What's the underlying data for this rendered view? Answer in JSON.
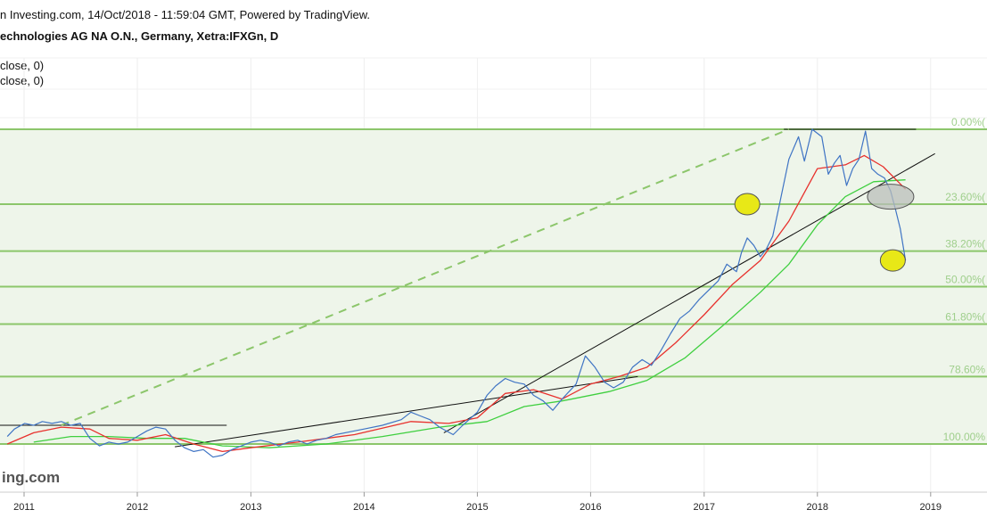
{
  "header": {
    "source_line": "n Investing.com, 14/Oct/2018 - 11:59:04 GMT, Powered by TradingView.",
    "symbol_line": "echnologies AG NA O.N., Germany, Xetra:IFXGn, D",
    "indicator_1": "close, 0)",
    "indicator_2": "close, 0)"
  },
  "watermark": "ing.com",
  "colors": {
    "price": "#3f74c4",
    "ma_fast": "#e8312d",
    "ma_slow": "#3fcf3f",
    "fib_line": "#8cc66b",
    "fib_fill": "#eef5ea",
    "fib_label": "#9fcf8c",
    "trendline": "#111111",
    "highlight_yellow": "#e8e817",
    "highlight_gray": "#b9bdb9"
  },
  "chart_data": {
    "type": "line",
    "x_axis_ticks": [
      "2011",
      "2012",
      "2013",
      "2014",
      "2015",
      "2016",
      "2017",
      "2018",
      "2019"
    ],
    "series": [
      {
        "values": [
          [
            "2010-11-08",
            7.6
          ],
          [
            "2010-12-01",
            8.0
          ],
          [
            "2011-01-03",
            8.3
          ],
          [
            "2011-02-01",
            8.2
          ],
          [
            "2011-03-01",
            8.4
          ],
          [
            "2011-04-01",
            8.3
          ],
          [
            "2011-05-01",
            8.4
          ],
          [
            "2011-06-01",
            8.2
          ],
          [
            "2011-07-01",
            8.3
          ],
          [
            "2011-08-01",
            7.5
          ],
          [
            "2011-09-01",
            7.1
          ],
          [
            "2011-10-01",
            7.3
          ],
          [
            "2011-11-01",
            7.2
          ],
          [
            "2011-12-01",
            7.3
          ],
          [
            "2012-01-01",
            7.6
          ],
          [
            "2012-02-01",
            7.9
          ],
          [
            "2012-03-01",
            8.1
          ],
          [
            "2012-04-01",
            8.0
          ],
          [
            "2012-05-01",
            7.4
          ],
          [
            "2012-06-01",
            7.0
          ],
          [
            "2012-07-01",
            6.8
          ],
          [
            "2012-08-01",
            6.9
          ],
          [
            "2012-09-01",
            6.5
          ],
          [
            "2012-10-01",
            6.6
          ],
          [
            "2012-11-01",
            6.9
          ],
          [
            "2013-01-01",
            7.3
          ],
          [
            "2013-02-01",
            7.4
          ],
          [
            "2013-03-01",
            7.3
          ],
          [
            "2013-04-01",
            7.1
          ],
          [
            "2013-05-01",
            7.3
          ],
          [
            "2013-06-01",
            7.4
          ],
          [
            "2013-07-01",
            7.2
          ],
          [
            "2013-08-01",
            7.4
          ],
          [
            "2013-09-01",
            7.5
          ],
          [
            "2013-10-01",
            7.7
          ],
          [
            "2013-12-01",
            7.9
          ],
          [
            "2014-01-01",
            8.0
          ],
          [
            "2014-03-01",
            8.2
          ],
          [
            "2014-05-01",
            8.5
          ],
          [
            "2014-06-01",
            8.9
          ],
          [
            "2014-07-01",
            8.7
          ],
          [
            "2014-08-01",
            8.5
          ],
          [
            "2014-09-01",
            8.1
          ],
          [
            "2014-10-15",
            7.7
          ],
          [
            "2014-11-15",
            8.2
          ],
          [
            "2015-01-01",
            8.9
          ],
          [
            "2015-02-01",
            9.8
          ],
          [
            "2015-03-01",
            10.3
          ],
          [
            "2015-04-01",
            10.7
          ],
          [
            "2015-05-01",
            10.5
          ],
          [
            "2015-06-01",
            10.4
          ],
          [
            "2015-07-01",
            9.8
          ],
          [
            "2015-08-01",
            9.5
          ],
          [
            "2015-09-01",
            9.0
          ],
          [
            "2015-10-01",
            9.6
          ],
          [
            "2015-11-15",
            10.4
          ],
          [
            "2015-12-15",
            11.9
          ],
          [
            "2016-01-15",
            11.3
          ],
          [
            "2016-02-15",
            10.5
          ],
          [
            "2016-03-15",
            10.2
          ],
          [
            "2016-04-15",
            10.5
          ],
          [
            "2016-05-15",
            11.3
          ],
          [
            "2016-06-15",
            11.7
          ],
          [
            "2016-07-15",
            11.4
          ],
          [
            "2016-08-15",
            12.2
          ],
          [
            "2016-09-15",
            13.1
          ],
          [
            "2016-10-15",
            13.9
          ],
          [
            "2016-11-15",
            14.3
          ],
          [
            "2016-12-15",
            14.9
          ],
          [
            "2017-01-15",
            15.4
          ],
          [
            "2017-02-15",
            15.9
          ],
          [
            "2017-03-15",
            16.8
          ],
          [
            "2017-04-15",
            16.4
          ],
          [
            "2017-05-01",
            17.4
          ],
          [
            "2017-05-20",
            18.2
          ],
          [
            "2017-06-10",
            17.8
          ],
          [
            "2017-07-01",
            17.2
          ],
          [
            "2017-07-20",
            17.6
          ],
          [
            "2017-08-10",
            18.3
          ],
          [
            "2017-09-01",
            20.0
          ],
          [
            "2017-10-01",
            22.4
          ],
          [
            "2017-11-01",
            23.6
          ],
          [
            "2017-11-20",
            22.3
          ],
          [
            "2017-12-15",
            24.0
          ],
          [
            "2018-01-15",
            23.6
          ],
          [
            "2018-02-05",
            21.6
          ],
          [
            "2018-02-25",
            22.2
          ],
          [
            "2018-03-15",
            22.6
          ],
          [
            "2018-04-05",
            21.0
          ],
          [
            "2018-04-25",
            21.9
          ],
          [
            "2018-05-15",
            22.4
          ],
          [
            "2018-06-05",
            23.9
          ],
          [
            "2018-06-25",
            21.9
          ],
          [
            "2018-07-15",
            21.6
          ],
          [
            "2018-08-05",
            21.4
          ],
          [
            "2018-08-25",
            20.7
          ],
          [
            "2018-09-10",
            19.7
          ],
          [
            "2018-09-25",
            18.7
          ],
          [
            "2018-10-12",
            17.0
          ]
        ]
      },
      {
        "values": [
          [
            "2010-11-08",
            7.2
          ],
          [
            "2011-02-01",
            7.8
          ],
          [
            "2011-05-01",
            8.1
          ],
          [
            "2011-08-01",
            8.0
          ],
          [
            "2011-10-01",
            7.5
          ],
          [
            "2012-01-01",
            7.4
          ],
          [
            "2012-04-01",
            7.7
          ],
          [
            "2012-07-01",
            7.2
          ],
          [
            "2012-10-01",
            6.8
          ],
          [
            "2013-01-01",
            7.0
          ],
          [
            "2013-06-01",
            7.3
          ],
          [
            "2013-12-01",
            7.7
          ],
          [
            "2014-06-01",
            8.4
          ],
          [
            "2014-10-01",
            8.3
          ],
          [
            "2015-01-01",
            8.6
          ],
          [
            "2015-04-01",
            9.9
          ],
          [
            "2015-07-01",
            10.1
          ],
          [
            "2015-10-01",
            9.6
          ],
          [
            "2016-01-01",
            10.4
          ],
          [
            "2016-04-01",
            10.8
          ],
          [
            "2016-07-01",
            11.3
          ],
          [
            "2016-10-01",
            12.6
          ],
          [
            "2017-01-01",
            14.1
          ],
          [
            "2017-04-01",
            15.7
          ],
          [
            "2017-07-01",
            17.0
          ],
          [
            "2017-10-01",
            19.1
          ],
          [
            "2018-01-01",
            21.9
          ],
          [
            "2018-04-01",
            22.1
          ],
          [
            "2018-06-01",
            22.6
          ],
          [
            "2018-08-01",
            22.0
          ],
          [
            "2018-10-12",
            20.8
          ]
        ]
      },
      {
        "values": [
          [
            "2011-02-01",
            7.3
          ],
          [
            "2011-06-01",
            7.6
          ],
          [
            "2011-10-01",
            7.6
          ],
          [
            "2012-02-01",
            7.5
          ],
          [
            "2012-06-01",
            7.5
          ],
          [
            "2012-10-01",
            7.1
          ],
          [
            "2013-03-01",
            7.0
          ],
          [
            "2013-09-01",
            7.2
          ],
          [
            "2014-03-01",
            7.6
          ],
          [
            "2014-09-01",
            8.1
          ],
          [
            "2015-02-01",
            8.4
          ],
          [
            "2015-06-01",
            9.2
          ],
          [
            "2015-10-01",
            9.5
          ],
          [
            "2016-03-01",
            10.0
          ],
          [
            "2016-07-01",
            10.6
          ],
          [
            "2016-11-01",
            11.8
          ],
          [
            "2017-03-01",
            13.5
          ],
          [
            "2017-07-01",
            15.3
          ],
          [
            "2017-10-01",
            16.8
          ],
          [
            "2018-01-01",
            18.9
          ],
          [
            "2018-04-01",
            20.4
          ],
          [
            "2018-07-01",
            21.2
          ],
          [
            "2018-10-12",
            21.3
          ]
        ]
      }
    ],
    "fibonacci_levels": [
      {
        "label": "0.00%(",
        "value": 24.0
      },
      {
        "label": "23.60%(",
        "value": 20.0
      },
      {
        "label": "38.20%(",
        "value": 17.5
      },
      {
        "label": "50.00%(",
        "value": 15.6
      },
      {
        "label": "61.80%(",
        "value": 13.6
      },
      {
        "label": "78.60%",
        "value": 10.8
      },
      {
        "label": "100.00%",
        "value": 7.2
      }
    ],
    "drawings": {
      "trend_lines": [
        {
          "from": [
            "2012-05-01",
            7.05
          ],
          "to": [
            "2016-06-01",
            10.8
          ],
          "style": "solid"
        },
        {
          "from": [
            "2014-09-15",
            7.8
          ],
          "to": [
            "2019-01-15",
            22.7
          ],
          "style": "solid"
        },
        {
          "from": [
            "2010-09-15",
            8.2
          ],
          "to": [
            "2012-10-15",
            8.2
          ],
          "style": "solid"
        },
        {
          "from": [
            "2017-09-15",
            24.0
          ],
          "to": [
            "2018-11-15",
            24.0
          ],
          "style": "solid"
        }
      ],
      "dashed_line": {
        "from": [
          "2011-05-01",
          8.2
        ],
        "to": [
          "2017-10-01",
          24.0
        ]
      },
      "ellipses": [
        {
          "center": [
            "2017-05-20",
            20.0
          ],
          "fill": "yellow"
        },
        {
          "center": [
            "2018-09-01",
            17.0
          ],
          "fill": "yellow"
        },
        {
          "center": [
            "2018-08-25",
            20.4
          ],
          "fill": "gray"
        }
      ]
    }
  }
}
